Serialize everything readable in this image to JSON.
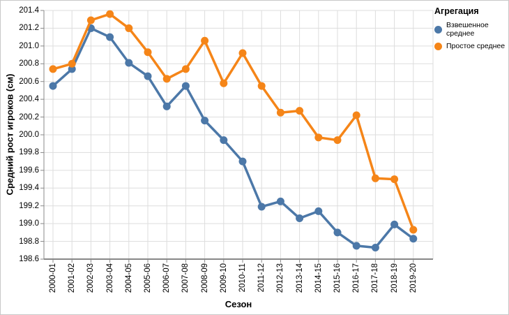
{
  "legend": {
    "title": "Агрегация",
    "items": [
      {
        "label": "Взвешенное среднее",
        "color": "#4c78a8"
      },
      {
        "label": "Простое среднее",
        "color": "#f58518"
      }
    ]
  },
  "chart_data": {
    "type": "line",
    "title": "",
    "xlabel": "Сезон",
    "ylabel": "Средний рост игроков (см)",
    "categories": [
      "2000-01",
      "2001-02",
      "2002-03",
      "2003-04",
      "2004-05",
      "2005-06",
      "2006-07",
      "2007-08",
      "2008-09",
      "2009-10",
      "2010-11",
      "2011-12",
      "2012-13",
      "2013-14",
      "2014-15",
      "2015-16",
      "2016-17",
      "2017-18",
      "2018-19",
      "2019-20"
    ],
    "series": [
      {
        "name": "Взвешенное среднее",
        "color": "#4c78a8",
        "values": [
          200.55,
          200.74,
          201.2,
          201.1,
          200.81,
          200.66,
          200.32,
          200.55,
          200.16,
          199.94,
          199.7,
          199.19,
          199.25,
          199.06,
          199.14,
          198.9,
          198.75,
          198.73,
          198.99,
          198.83
        ]
      },
      {
        "name": "Простое среднее",
        "color": "#f58518",
        "values": [
          200.74,
          200.8,
          201.29,
          201.36,
          201.2,
          200.93,
          200.63,
          200.74,
          201.06,
          200.58,
          200.92,
          200.55,
          200.25,
          200.27,
          199.97,
          199.94,
          200.22,
          199.51,
          199.5,
          198.93
        ]
      }
    ],
    "ylim": [
      198.6,
      201.4
    ],
    "ytick_step": 0.2,
    "grid": true,
    "legend_position": "top-right-outside",
    "grid_color": "#dddddd",
    "axis_color": "#888888"
  }
}
